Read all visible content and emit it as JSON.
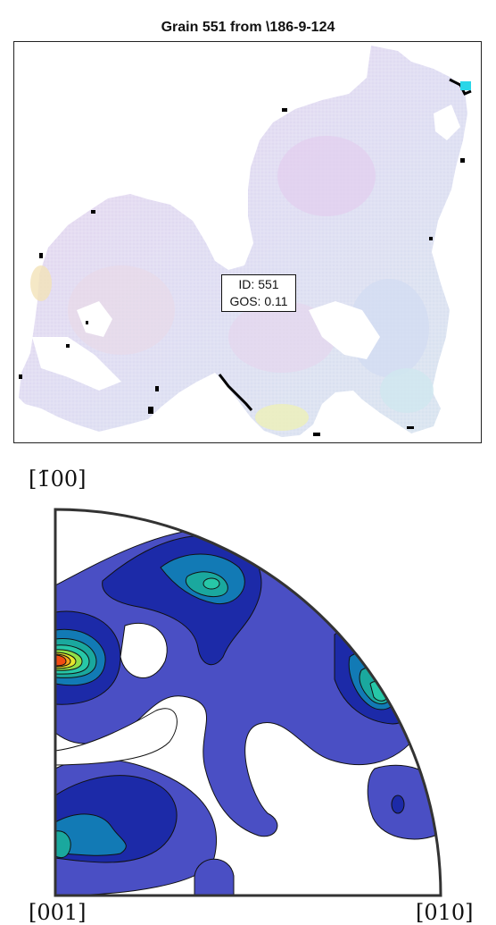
{
  "title": "Grain 551 from \\186-9-124",
  "grain_map": {
    "annotation": {
      "id_line": "ID: 551",
      "gos_line": "GOS: 0.11"
    }
  },
  "pole_figure": {
    "axis_top": "[1̄00]",
    "axis_bottom_left": "[001]",
    "axis_bottom_right": "[010]"
  },
  "colors": {
    "contour_level_1": "#4a4fc4",
    "contour_level_2": "#1c2aa8",
    "contour_level_3": "#127ab5",
    "contour_level_4": "#1aa89e",
    "contour_level_5": "#27c7a7",
    "contour_level_6": "#8fe04a",
    "contour_level_7": "#e6e52c",
    "contour_level_8": "#f7a31a",
    "contour_level_9": "#f24c12"
  }
}
